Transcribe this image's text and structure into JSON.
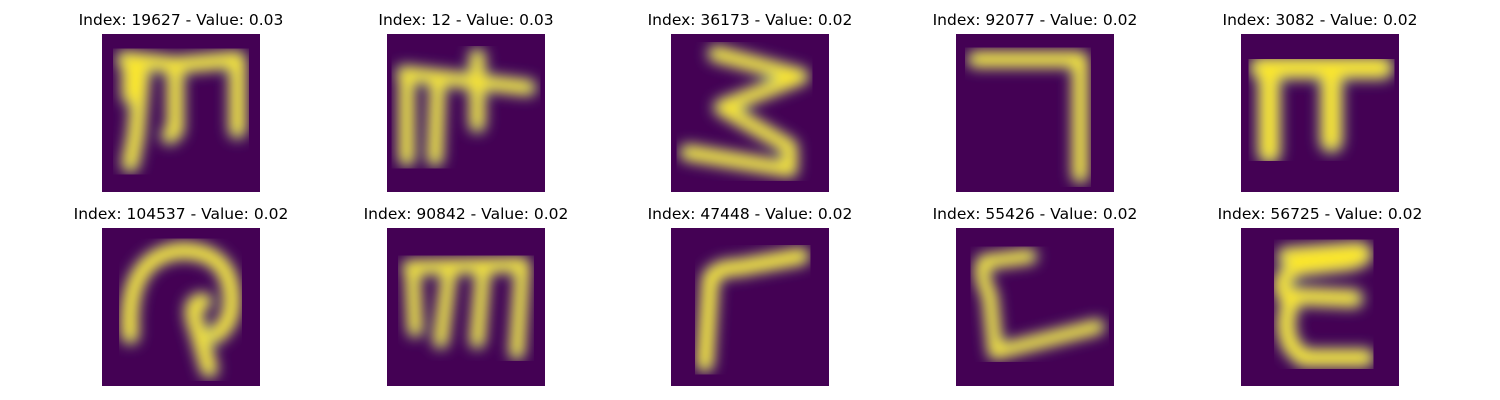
{
  "panels": [
    {
      "title": "Index: 19627 - Value: 0.03",
      "glyph": "letter-m-hook-icon"
    },
    {
      "title": "Index: 12 - Value: 0.03",
      "glyph": "letter-t-bar-icon"
    },
    {
      "title": "Index: 36173 - Value: 0.02",
      "glyph": "digit-three-icon"
    },
    {
      "title": "Index: 92077 - Value: 0.02",
      "glyph": "digit-seven-icon"
    },
    {
      "title": "Index: 3082 - Value: 0.02",
      "glyph": "letter-pi-icon"
    },
    {
      "title": "Index: 104537 - Value: 0.02",
      "glyph": "loop-symbol-icon"
    },
    {
      "title": "Index: 90842 - Value: 0.02",
      "glyph": "letter-m-icon"
    },
    {
      "title": "Index: 47448 - Value: 0.02",
      "glyph": "letter-r-icon"
    },
    {
      "title": "Index: 55426 - Value: 0.02",
      "glyph": "letter-l-icon"
    },
    {
      "title": "Index: 56725 - Value: 0.02",
      "glyph": "letter-e-curly-icon"
    }
  ],
  "colors": {
    "background": "#440154",
    "stroke_core": "#fde725",
    "stroke_edge": "#21918c",
    "stroke_mid": "#5ec962"
  }
}
